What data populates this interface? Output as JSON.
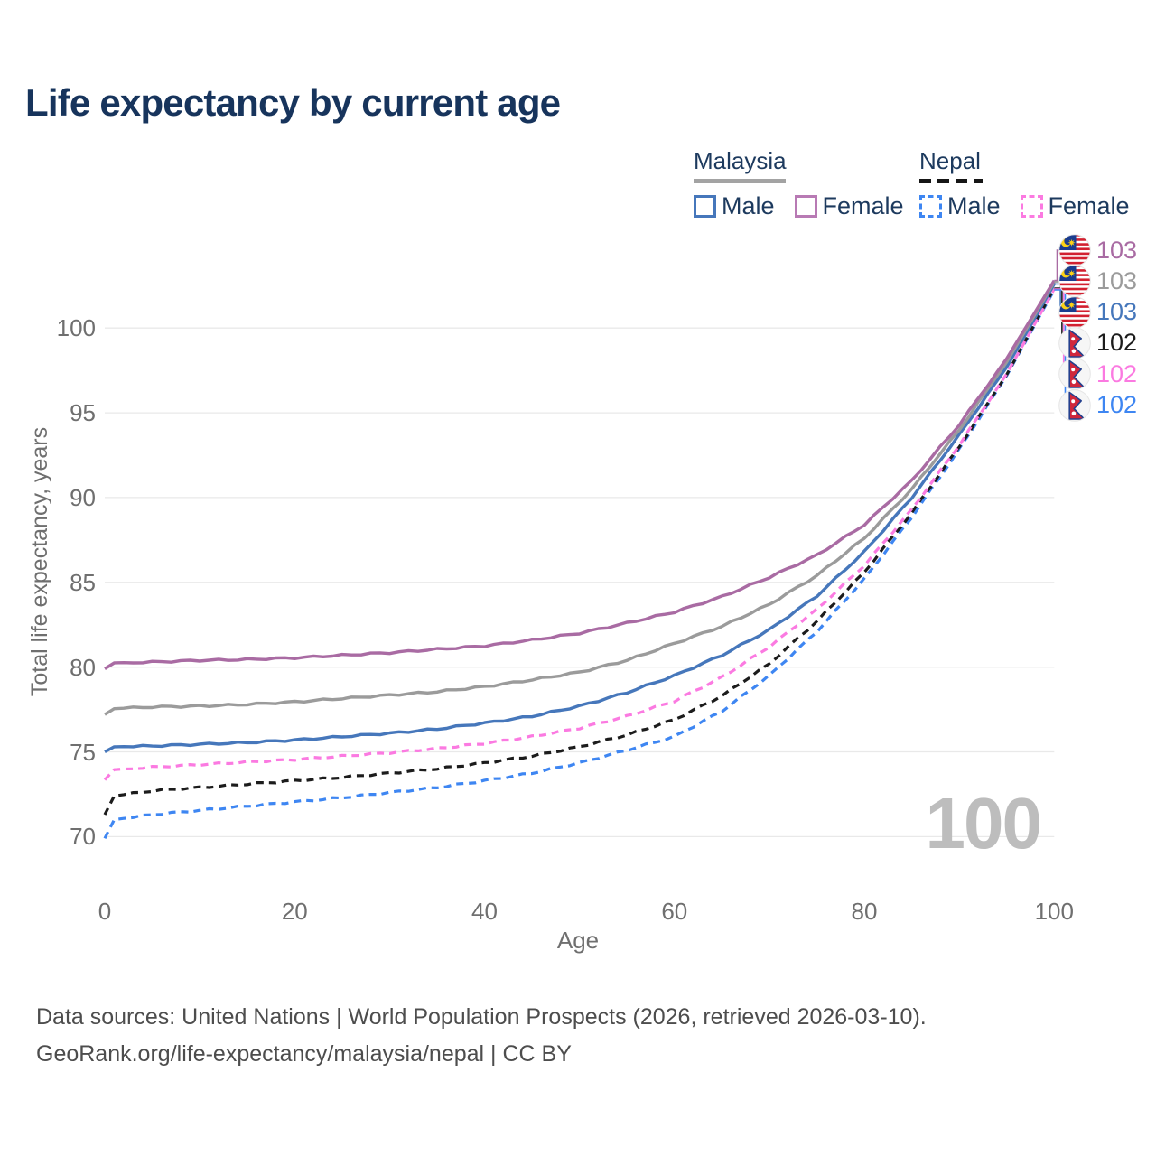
{
  "title": "Life expectancy by current age",
  "watermark": "100",
  "legend": {
    "groups": [
      {
        "label": "Malaysia",
        "line_style": "solid",
        "underline_color": "#a3a3a3",
        "items": [
          {
            "label": "Male",
            "color": "#4677bb"
          },
          {
            "label": "Female",
            "color": "#b87ab4"
          }
        ]
      },
      {
        "label": "Nepal",
        "line_style": "dashed",
        "underline_color": "#161616",
        "items": [
          {
            "label": "Male",
            "color": "#3e86f2"
          },
          {
            "label": "Female",
            "color": "#fb7ae1"
          }
        ]
      }
    ]
  },
  "footer": {
    "line1": "Data sources: United Nations | World Population Prospects (2026, retrieved 2026-03-10).",
    "line2": "GeoRank.org/life-expectancy/malaysia/nepal | CC BY"
  },
  "end_labels": [
    {
      "text": "103",
      "series": "Malaysia Female",
      "flag": "malaysia",
      "color": "#a96ba3"
    },
    {
      "text": "103",
      "series": "Malaysia",
      "flag": "malaysia",
      "color": "#9b9b9b"
    },
    {
      "text": "103",
      "series": "Malaysia Male",
      "flag": "malaysia",
      "color": "#4677bb"
    },
    {
      "text": "102",
      "series": "Nepal",
      "flag": "nepal",
      "color": "#1c1c1c"
    },
    {
      "text": "102",
      "series": "Nepal Female",
      "flag": "nepal",
      "color": "#fb7ae1"
    },
    {
      "text": "102",
      "series": "Nepal Male",
      "flag": "nepal",
      "color": "#3e86f2"
    }
  ],
  "chart_data": {
    "type": "line",
    "title": "Life expectancy by current age",
    "x_label": "Age",
    "y_label": "Total life expectancy, years",
    "x_ticks": [
      0,
      20,
      40,
      60,
      80,
      100
    ],
    "y_ticks": [
      70,
      75,
      80,
      85,
      90,
      95,
      100
    ],
    "x_range": [
      0,
      100
    ],
    "y_range": [
      69.5,
      103.2
    ],
    "grid": "horizontal-only",
    "legend_position": "top-right",
    "series": [
      {
        "name": "Nepal Male",
        "country": "Nepal",
        "sex": "Male",
        "color": "#3e86f2",
        "dashed": true,
        "end_label": "102",
        "points": [
          [
            0,
            69.9
          ],
          [
            1,
            71.0
          ],
          [
            5,
            71.3
          ],
          [
            10,
            71.55
          ],
          [
            15,
            71.8
          ],
          [
            20,
            72.05
          ],
          [
            25,
            72.3
          ],
          [
            30,
            72.6
          ],
          [
            35,
            72.9
          ],
          [
            40,
            73.3
          ],
          [
            45,
            73.75
          ],
          [
            50,
            74.35
          ],
          [
            55,
            75.1
          ],
          [
            60,
            75.9
          ],
          [
            65,
            77.4
          ],
          [
            70,
            79.5
          ],
          [
            75,
            82.1
          ],
          [
            80,
            85.2
          ],
          [
            85,
            88.85
          ],
          [
            90,
            92.85
          ],
          [
            95,
            97.2
          ],
          [
            100,
            102.25
          ]
        ]
      },
      {
        "name": "Nepal",
        "country": "Nepal",
        "sex": "Both sexes",
        "color": "#1c1c1c",
        "dashed": true,
        "end_label": "102",
        "points": [
          [
            0,
            71.3
          ],
          [
            1,
            72.4
          ],
          [
            5,
            72.7
          ],
          [
            10,
            72.9
          ],
          [
            15,
            73.1
          ],
          [
            20,
            73.3
          ],
          [
            25,
            73.5
          ],
          [
            30,
            73.75
          ],
          [
            35,
            74.0
          ],
          [
            40,
            74.35
          ],
          [
            45,
            74.75
          ],
          [
            50,
            75.3
          ],
          [
            55,
            76.0
          ],
          [
            60,
            76.9
          ],
          [
            65,
            78.3
          ],
          [
            70,
            80.2
          ],
          [
            75,
            82.7
          ],
          [
            80,
            85.6
          ],
          [
            85,
            89.1
          ],
          [
            90,
            93.0
          ],
          [
            95,
            97.25
          ],
          [
            100,
            102.35
          ]
        ]
      },
      {
        "name": "Nepal Female",
        "country": "Nepal",
        "sex": "Female",
        "color": "#fb7ae1",
        "dashed": true,
        "end_label": "102",
        "points": [
          [
            0,
            73.35
          ],
          [
            1,
            73.95
          ],
          [
            5,
            74.1
          ],
          [
            10,
            74.25
          ],
          [
            15,
            74.4
          ],
          [
            20,
            74.55
          ],
          [
            25,
            74.75
          ],
          [
            30,
            74.95
          ],
          [
            35,
            75.2
          ],
          [
            40,
            75.5
          ],
          [
            45,
            75.9
          ],
          [
            50,
            76.4
          ],
          [
            55,
            77.1
          ],
          [
            60,
            78.0
          ],
          [
            65,
            79.4
          ],
          [
            70,
            81.2
          ],
          [
            75,
            83.4
          ],
          [
            80,
            86.0
          ],
          [
            85,
            89.3
          ],
          [
            90,
            93.1
          ],
          [
            95,
            97.3
          ],
          [
            100,
            102.3
          ]
        ]
      },
      {
        "name": "Malaysia Male",
        "country": "Malaysia",
        "sex": "Male",
        "color": "#4677bb",
        "dashed": false,
        "end_label": "103",
        "points": [
          [
            0,
            75.0
          ],
          [
            1,
            75.3
          ],
          [
            5,
            75.35
          ],
          [
            10,
            75.45
          ],
          [
            15,
            75.55
          ],
          [
            20,
            75.7
          ],
          [
            25,
            75.9
          ],
          [
            30,
            76.1
          ],
          [
            35,
            76.35
          ],
          [
            40,
            76.7
          ],
          [
            45,
            77.1
          ],
          [
            50,
            77.7
          ],
          [
            55,
            78.5
          ],
          [
            60,
            79.5
          ],
          [
            65,
            80.7
          ],
          [
            70,
            82.2
          ],
          [
            75,
            84.2
          ],
          [
            80,
            86.8
          ],
          [
            85,
            90.0
          ],
          [
            90,
            93.7
          ],
          [
            95,
            97.7
          ],
          [
            100,
            102.6
          ]
        ]
      },
      {
        "name": "Malaysia",
        "country": "Malaysia",
        "sex": "Both sexes",
        "color": "#9b9b9b",
        "dashed": false,
        "end_label": "103",
        "points": [
          [
            0,
            77.2
          ],
          [
            1,
            77.55
          ],
          [
            5,
            77.65
          ],
          [
            10,
            77.7
          ],
          [
            15,
            77.8
          ],
          [
            20,
            77.95
          ],
          [
            25,
            78.15
          ],
          [
            30,
            78.35
          ],
          [
            35,
            78.55
          ],
          [
            40,
            78.85
          ],
          [
            45,
            79.25
          ],
          [
            50,
            79.7
          ],
          [
            55,
            80.4
          ],
          [
            60,
            81.4
          ],
          [
            65,
            82.4
          ],
          [
            70,
            83.7
          ],
          [
            75,
            85.4
          ],
          [
            80,
            87.6
          ],
          [
            85,
            90.5
          ],
          [
            90,
            94.0
          ],
          [
            95,
            98.0
          ],
          [
            100,
            102.72
          ]
        ]
      },
      {
        "name": "Malaysia Female",
        "country": "Malaysia",
        "sex": "Female",
        "color": "#a96ba3",
        "dashed": false,
        "end_label": "103",
        "points": [
          [
            0,
            79.9
          ],
          [
            1,
            80.25
          ],
          [
            5,
            80.3
          ],
          [
            10,
            80.4
          ],
          [
            15,
            80.45
          ],
          [
            20,
            80.55
          ],
          [
            25,
            80.7
          ],
          [
            30,
            80.85
          ],
          [
            35,
            81.05
          ],
          [
            40,
            81.25
          ],
          [
            45,
            81.6
          ],
          [
            50,
            82.0
          ],
          [
            55,
            82.6
          ],
          [
            60,
            83.25
          ],
          [
            65,
            84.15
          ],
          [
            70,
            85.3
          ],
          [
            75,
            86.6
          ],
          [
            80,
            88.4
          ],
          [
            85,
            91.0
          ],
          [
            90,
            94.3
          ],
          [
            95,
            98.2
          ],
          [
            100,
            102.8
          ]
        ]
      }
    ]
  }
}
